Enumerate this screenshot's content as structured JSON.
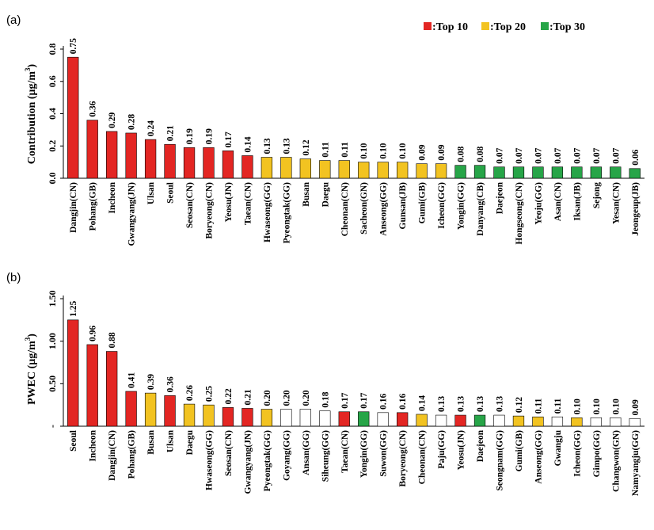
{
  "colors": {
    "top10": "#e32623",
    "top20": "#f2c321",
    "top30": "#27a548",
    "none": "#ffffff",
    "stroke": "#000000"
  },
  "legend": [
    {
      "label": ":Top 10",
      "color": "#e32623"
    },
    {
      "label": ":Top 20",
      "color": "#f2c321"
    },
    {
      "label": ":Top 30",
      "color": "#27a548"
    }
  ],
  "chart_data": [
    {
      "panel": "(a)",
      "type": "bar",
      "ylabel_main": "Contribution (μg/m",
      "ylabel_sup": "3",
      "ylabel_close": ")",
      "ylim": [
        0,
        0.8
      ],
      "yticks": [
        "0.0",
        "0.2",
        "0.4",
        "0.6",
        "0.8"
      ],
      "ytick_values": [
        0,
        0.2,
        0.4,
        0.6,
        0.8
      ],
      "categories": [
        "Dangjin(CN)",
        "Pohang(GB)",
        "Incheon",
        "Gwangyang(JN)",
        "Ulsan",
        "Seoul",
        "Seosan(CN)",
        "Boryeong(CN)",
        "Yeosu(JN)",
        "Taean(CN)",
        "Hwaseong(GG)",
        "Pyeongtak(GG)",
        "Busan",
        "Daegu",
        "Cheonan(CN)",
        "Sacheon(GN)",
        "Anseong(GG)",
        "Gunsan(JB)",
        "Gumi(GB)",
        "Icheon(GG)",
        "Yongin(GG)",
        "Danyang(CB)",
        "Daejeon",
        "Hongseong(CN)",
        "Yeoju(GG)",
        "Asan(CN)",
        "Iksan(JB)",
        "Sejong",
        "Yesan(CN)",
        "Jeongeup(JB)"
      ],
      "values": [
        0.75,
        0.36,
        0.29,
        0.28,
        0.24,
        0.21,
        0.19,
        0.19,
        0.17,
        0.14,
        0.13,
        0.13,
        0.12,
        0.11,
        0.11,
        0.1,
        0.1,
        0.1,
        0.09,
        0.09,
        0.08,
        0.08,
        0.07,
        0.07,
        0.07,
        0.07,
        0.07,
        0.07,
        0.07,
        0.06
      ],
      "labels": [
        "0.75",
        "0.36",
        "0.29",
        "0.28",
        "0.24",
        "0.21",
        "0.19",
        "0.19",
        "0.17",
        "0.14",
        "0.13",
        "0.13",
        "0.12",
        "0.11",
        "0.11",
        "0.10",
        "0.10",
        "0.10",
        "0.09",
        "0.09",
        "0.08",
        "0.08",
        "0.07",
        "0.07",
        "0.07",
        "0.07",
        "0.07",
        "0.07",
        "0.07",
        "0.06"
      ],
      "groups": [
        "top10",
        "top10",
        "top10",
        "top10",
        "top10",
        "top10",
        "top10",
        "top10",
        "top10",
        "top10",
        "top20",
        "top20",
        "top20",
        "top20",
        "top20",
        "top20",
        "top20",
        "top20",
        "top20",
        "top20",
        "top30",
        "top30",
        "top30",
        "top30",
        "top30",
        "top30",
        "top30",
        "top30",
        "top30",
        "top30"
      ]
    },
    {
      "panel": "(b)",
      "type": "bar",
      "ylabel_main": "PWEC (μg/m",
      "ylabel_sup": "3",
      "ylabel_close": ")",
      "ylim": [
        0,
        1.5
      ],
      "yticks": [
        "-",
        "0.50",
        "1.00",
        "1.50"
      ],
      "ytick_values": [
        0,
        0.5,
        1.0,
        1.5
      ],
      "categories": [
        "Seoul",
        "Incheon",
        "Dangjin(CN)",
        "Pohang(GB)",
        "Busan",
        "Ulsan",
        "Daegu",
        "Hwaseong(GG)",
        "Seosan(CN)",
        "Gwangyang(JN)",
        "Pyeongtak(GG)",
        "Goyang(GG)",
        "Ansan(GG)",
        "Siheung(GG)",
        "Taean(CN)",
        "Yongin(GG)",
        "Suwon(GG)",
        "Boryeong(CN)",
        "Cheonan(CN)",
        "Paju(GG)",
        "Yeosu(JN)",
        "Daejeon",
        "Seongnam(GG)",
        "Gumi(GB)",
        "Anseong(GG)",
        "Gwangju",
        "Icheon(GG)",
        "Gimpo(GG)",
        "Changwon(GN)",
        "Namyangju(GG)"
      ],
      "values": [
        1.25,
        0.96,
        0.88,
        0.41,
        0.39,
        0.36,
        0.26,
        0.25,
        0.22,
        0.21,
        0.2,
        0.2,
        0.2,
        0.18,
        0.17,
        0.17,
        0.16,
        0.16,
        0.14,
        0.13,
        0.13,
        0.13,
        0.13,
        0.12,
        0.11,
        0.11,
        0.1,
        0.1,
        0.1,
        0.09
      ],
      "labels": [
        "1.25",
        "0.96",
        "0.88",
        "0.41",
        "0.39",
        "0.36",
        "0.26",
        "0.25",
        "0.22",
        "0.21",
        "0.20",
        "0.20",
        "0.20",
        "0.18",
        "0.17",
        "0.17",
        "0.16",
        "0.16",
        "0.14",
        "0.13",
        "0.13",
        "0.13",
        "0.13",
        "0.12",
        "0.11",
        "0.11",
        "0.10",
        "0.10",
        "0.10",
        "0.09"
      ],
      "groups": [
        "top10",
        "top10",
        "top10",
        "top10",
        "top20",
        "top10",
        "top20",
        "top20",
        "top10",
        "top10",
        "top20",
        "none",
        "none",
        "none",
        "top10",
        "top30",
        "none",
        "top10",
        "top20",
        "none",
        "top10",
        "top30",
        "none",
        "top20",
        "top20",
        "none",
        "top20",
        "none",
        "none",
        "none"
      ]
    }
  ]
}
